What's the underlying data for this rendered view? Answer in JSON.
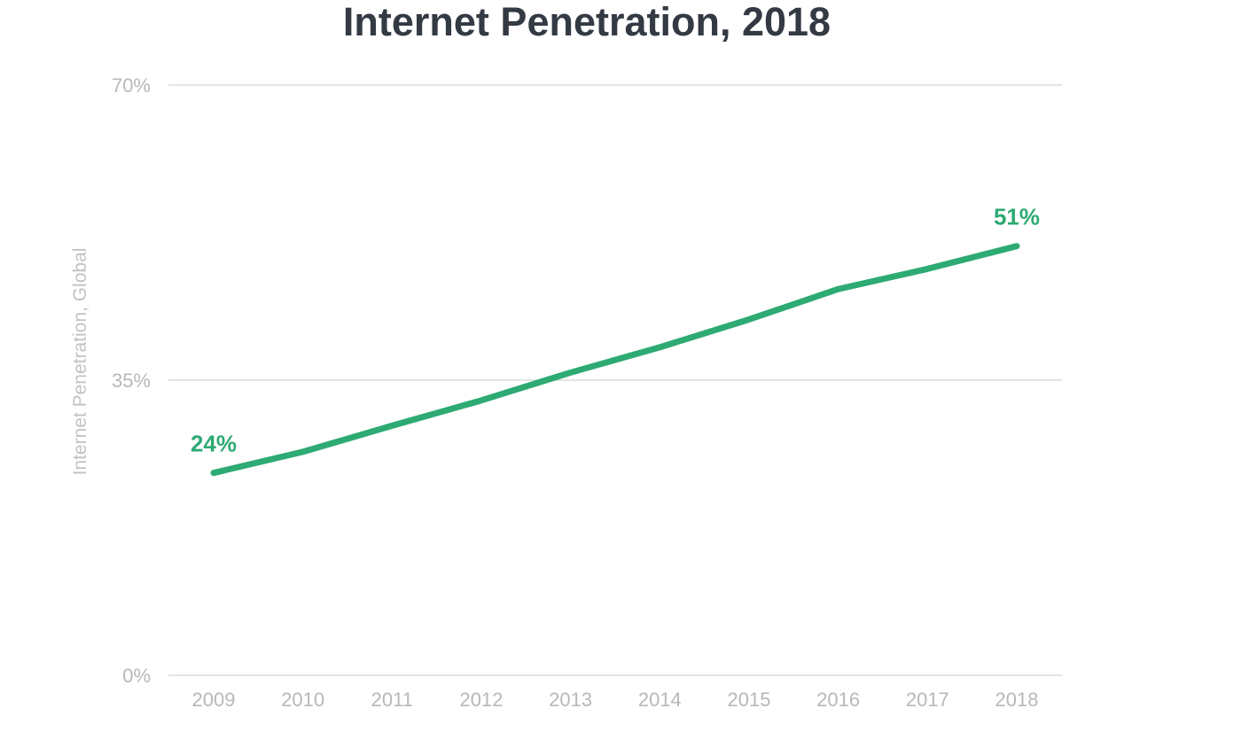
{
  "chart_data": {
    "type": "line",
    "title": "Internet Penetration, 2018",
    "xlabel": "",
    "ylabel": "Internet Penetration, Global",
    "x": [
      "2009",
      "2010",
      "2011",
      "2012",
      "2013",
      "2014",
      "2015",
      "2016",
      "2017",
      "2018"
    ],
    "series": [
      {
        "values": [
          24,
          26.5,
          29.6,
          32.6,
          35.9,
          38.9,
          42.2,
          45.8,
          48.2,
          50.9
        ],
        "color": "#2eaa73"
      }
    ],
    "ylim": [
      0,
      70
    ],
    "yticks": [
      "0%",
      "35%",
      "70%"
    ],
    "ytick_values": [
      0,
      35,
      70
    ],
    "data_labels": [
      {
        "index": 0,
        "text": "24%"
      },
      {
        "index": 9,
        "text": "51%"
      }
    ],
    "grid": true,
    "legend": "none",
    "gridline_color": "#dcdcdc",
    "tick_color": "#b8b8b8"
  }
}
